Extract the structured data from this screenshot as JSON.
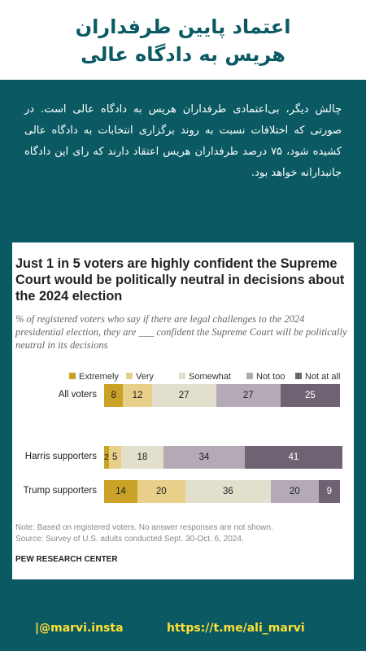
{
  "header": {
    "title_line1": "اعتماد پایین طرفداران",
    "title_line2": "هریس به دادگاه عالی"
  },
  "body_text": "چالش دیگر، بی‌اعتمادی طرفداران هریس به دادگاه عالی است. در صورتی که اختلافات نسبت به روند برگزاری انتخابات به دادگاه عالی کشیده شود، ۷۵ درصد طرفداران هریس اعتقاد دارند که رای این دادگاه جانبدارانه خواهد بود.",
  "chart_data": {
    "type": "bar",
    "orientation": "horizontal",
    "stacked": true,
    "title": "Just 1 in 5 voters are highly confident the Supreme Court would be politically neutral in decisions about the 2024 election",
    "subtitle": "% of registered voters who say if there are legal challenges to the 2024 presidential election, they are ___ confident the Supreme Court will be politically neutral in its decisions",
    "legend_position": "top",
    "categories": [
      "All voters",
      "Harris supporters",
      "Trump supporters"
    ],
    "series": [
      {
        "name": "Extremely",
        "color": "#c9a227",
        "values": [
          8,
          2,
          14
        ]
      },
      {
        "name": "Very",
        "color": "#e8d08a",
        "values": [
          12,
          5,
          20
        ]
      },
      {
        "name": "Somewhat",
        "color": "#e2dfcd",
        "values": [
          27,
          18,
          36
        ]
      },
      {
        "name": "Not too",
        "color": "#b3aab6",
        "values": [
          27,
          34,
          20
        ]
      },
      {
        "name": "Not at all",
        "color": "#6e6273",
        "values": [
          25,
          41,
          9
        ]
      }
    ],
    "note": "Note: Based on registered voters. No answer responses are not shown.",
    "source": "Source: Survey of U.S. adults conducted Sept. 30-Oct. 6, 2024.",
    "org": "PEW RESEARCH CENTER"
  },
  "footer": {
    "instagram": "|@marvi.insta",
    "telegram": "https://t.me/ali_marvi"
  }
}
